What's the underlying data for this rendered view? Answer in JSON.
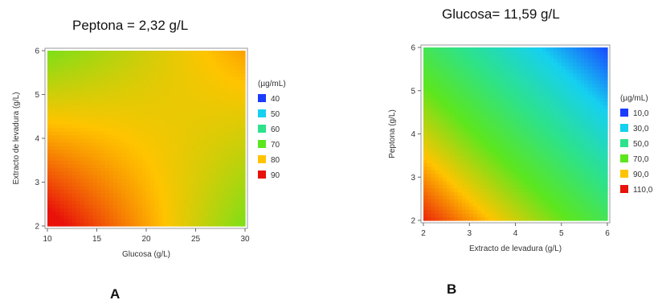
{
  "chart_data": [
    {
      "type": "heatmap",
      "panel": "A",
      "title": "Peptona = 2,32 g/L",
      "xlabel": "Glucosa (g/L)",
      "ylabel": "Extracto de levadura (g/L)",
      "xlim": [
        10,
        30
      ],
      "ylim": [
        2,
        6
      ],
      "xticks": [
        "10",
        "15",
        "20",
        "25",
        "30"
      ],
      "yticks": [
        "2",
        "3",
        "4",
        "5",
        "6"
      ],
      "corner_values": {
        "x_min_y_min": 92,
        "x_max_y_min": 72,
        "x_min_y_max": 72,
        "x_max_y_max": 82
      },
      "legend": {
        "title": "(µg/mL)",
        "entries": [
          {
            "label": "40",
            "value": 40,
            "color": "#1a3cff"
          },
          {
            "label": "50",
            "value": 50,
            "color": "#16d0f0"
          },
          {
            "label": "60",
            "value": 60,
            "color": "#2de28a"
          },
          {
            "label": "70",
            "value": 70,
            "color": "#5ce61e"
          },
          {
            "label": "80",
            "value": 80,
            "color": "#ffc400"
          },
          {
            "label": "90",
            "value": 90,
            "color": "#e8120a"
          }
        ]
      }
    },
    {
      "type": "heatmap",
      "panel": "B",
      "title": "Glucosa= 11,59 g/L",
      "xlabel": "Extracto de levadura (g/L)",
      "ylabel": "Peptona (g/L)",
      "xlim": [
        2,
        6
      ],
      "ylim": [
        2,
        6
      ],
      "xticks": [
        "2",
        "3",
        "4",
        "5",
        "6"
      ],
      "yticks": [
        "2",
        "3",
        "4",
        "5",
        "6"
      ],
      "corner_values": {
        "x_min_y_min": 108,
        "x_max_y_min": 60,
        "x_min_y_max": 60,
        "x_max_y_max": 12
      },
      "legend": {
        "title": "(µg/mL)",
        "entries": [
          {
            "label": "10,0",
            "value": 10,
            "color": "#1a3cff"
          },
          {
            "label": "30,0",
            "value": 30,
            "color": "#16d0f0"
          },
          {
            "label": "50,0",
            "value": 50,
            "color": "#2de28a"
          },
          {
            "label": "70,0",
            "value": 70,
            "color": "#5ce61e"
          },
          {
            "label": "90,0",
            "value": 90,
            "color": "#ffc400"
          },
          {
            "label": "110,0",
            "value": 110,
            "color": "#e8120a"
          }
        ]
      }
    }
  ],
  "panel_letters": {
    "a": "A",
    "b": "B"
  }
}
